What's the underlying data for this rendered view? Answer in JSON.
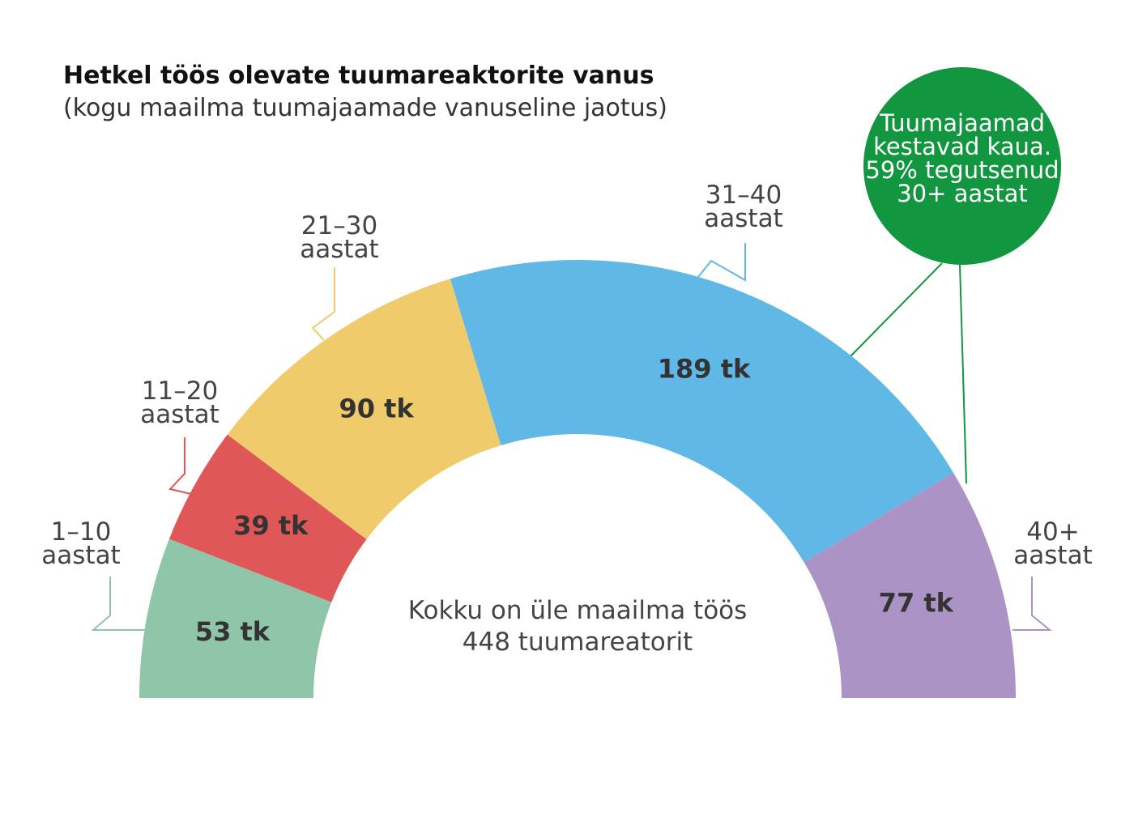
{
  "chart_data": {
    "type": "half-donut",
    "title": "Hetkel töös olevate tuumareaktorite vanus",
    "subtitle": "(kogu maailma tuumajaamade vanuseline jaotus)",
    "categories": [
      "1–10 aastat",
      "11–20 aastat",
      "21–30 aastat",
      "31–40 aastat",
      "40+ aastat"
    ],
    "values": [
      53,
      39,
      90,
      189,
      77
    ],
    "value_labels": [
      "53 tk",
      "39 tk",
      "90 tk",
      "189 tk",
      "77 tk"
    ],
    "colors": [
      "#8fc5a8",
      "#e05757",
      "#f0cb6b",
      "#5fb8e6",
      "#ab93c6"
    ],
    "center_text": "Kokku on üle maailma töös 448 tuumareatorit",
    "annotation": "Tuumajaamad kestavad kaua. 59% tegutsenud 30+ aastat"
  }
}
